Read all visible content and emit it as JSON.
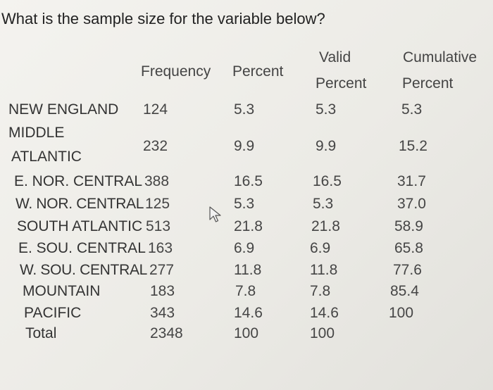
{
  "question": "What is the sample size for the variable below?",
  "headers": {
    "frequency": "Frequency",
    "percent": "Percent",
    "valid_1": "Valid",
    "valid_2": "Percent",
    "cumulative_1": "Cumulative",
    "cumulative_2": "Percent"
  },
  "rows": [
    {
      "label": "NEW ENGLAND",
      "frequency": "124",
      "percent": "5.3",
      "valid": "5.3",
      "cumulative": "5.3"
    },
    {
      "label_1": "MIDDLE",
      "label_2": "ATLANTIC",
      "frequency": "232",
      "percent": "9.9",
      "valid": "9.9",
      "cumulative": "15.2"
    },
    {
      "label": "E. NOR. CENTRAL",
      "frequency": "388",
      "percent": "16.5",
      "valid": "16.5",
      "cumulative": "31.7"
    },
    {
      "label": "W. NOR. CENTRAL",
      "frequency": "125",
      "percent": "5.3",
      "valid": "5.3",
      "cumulative": "37.0"
    },
    {
      "label": "SOUTH ATLANTIC",
      "frequency": "513",
      "percent": "21.8",
      "valid": "21.8",
      "cumulative": "58.9"
    },
    {
      "label": "E. SOU. CENTRAL",
      "frequency": "163",
      "percent": "6.9",
      "valid": "6.9",
      "cumulative": "65.8"
    },
    {
      "label": "W. SOU. CENTRAL",
      "frequency": "277",
      "percent": "11.8",
      "valid": "11.8",
      "cumulative": "77.6"
    },
    {
      "label": "MOUNTAIN",
      "frequency": "183",
      "percent": "7.8",
      "valid": "7.8",
      "cumulative": "85.4"
    },
    {
      "label": "PACIFIC",
      "frequency": "343",
      "percent": "14.6",
      "valid": "14.6",
      "cumulative": "100"
    },
    {
      "label": "Total",
      "frequency": "2348",
      "percent": "100",
      "valid": "100"
    }
  ],
  "cursor_icon": "mouse-pointer-icon"
}
